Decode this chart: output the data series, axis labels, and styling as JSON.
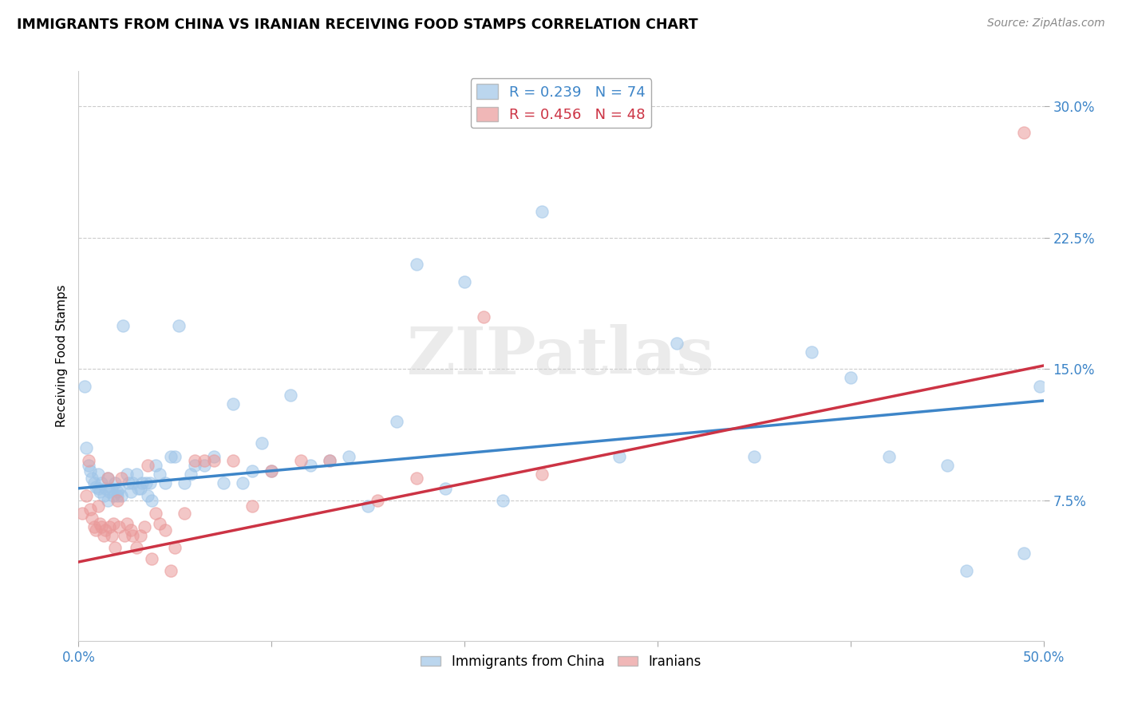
{
  "title": "IMMIGRANTS FROM CHINA VS IRANIAN RECEIVING FOOD STAMPS CORRELATION CHART",
  "source": "Source: ZipAtlas.com",
  "xlabel_china": "Immigrants from China",
  "xlabel_iranian": "Iranians",
  "ylabel": "Receiving Food Stamps",
  "xlim": [
    0.0,
    0.5
  ],
  "ylim": [
    -0.005,
    0.32
  ],
  "xticks": [
    0.0,
    0.1,
    0.2,
    0.3,
    0.4,
    0.5
  ],
  "xtick_labels": [
    "0.0%",
    "",
    "",
    "",
    "",
    "50.0%"
  ],
  "yticks_right": [
    0.075,
    0.15,
    0.225,
    0.3
  ],
  "ytick_labels": [
    "7.5%",
    "15.0%",
    "22.5%",
    "30.0%"
  ],
  "china_R": 0.239,
  "china_N": 74,
  "iran_R": 0.456,
  "iran_N": 48,
  "china_color": "#9fc5e8",
  "iran_color": "#ea9999",
  "china_line_color": "#3d85c8",
  "iran_line_color": "#cc3344",
  "china_line_start_y": 0.082,
  "china_line_end_y": 0.132,
  "iran_line_start_y": 0.04,
  "iran_line_end_y": 0.152,
  "watermark_text": "ZIPatlas",
  "china_scatter_x": [
    0.003,
    0.004,
    0.005,
    0.006,
    0.007,
    0.008,
    0.009,
    0.01,
    0.01,
    0.011,
    0.012,
    0.013,
    0.014,
    0.015,
    0.015,
    0.016,
    0.017,
    0.018,
    0.019,
    0.02,
    0.02,
    0.021,
    0.022,
    0.023,
    0.025,
    0.026,
    0.027,
    0.028,
    0.03,
    0.031,
    0.032,
    0.033,
    0.035,
    0.036,
    0.037,
    0.038,
    0.04,
    0.042,
    0.045,
    0.048,
    0.05,
    0.052,
    0.055,
    0.058,
    0.06,
    0.065,
    0.07,
    0.075,
    0.08,
    0.085,
    0.09,
    0.095,
    0.1,
    0.11,
    0.12,
    0.13,
    0.14,
    0.15,
    0.165,
    0.175,
    0.19,
    0.2,
    0.22,
    0.24,
    0.28,
    0.31,
    0.35,
    0.38,
    0.4,
    0.42,
    0.45,
    0.46,
    0.49,
    0.498
  ],
  "china_scatter_y": [
    0.14,
    0.105,
    0.095,
    0.092,
    0.088,
    0.085,
    0.083,
    0.09,
    0.082,
    0.08,
    0.085,
    0.078,
    0.082,
    0.088,
    0.075,
    0.08,
    0.082,
    0.078,
    0.085,
    0.08,
    0.078,
    0.082,
    0.078,
    0.175,
    0.09,
    0.085,
    0.08,
    0.085,
    0.09,
    0.082,
    0.082,
    0.085,
    0.085,
    0.078,
    0.085,
    0.075,
    0.095,
    0.09,
    0.085,
    0.1,
    0.1,
    0.175,
    0.085,
    0.09,
    0.095,
    0.095,
    0.1,
    0.085,
    0.13,
    0.085,
    0.092,
    0.108,
    0.092,
    0.135,
    0.095,
    0.098,
    0.1,
    0.072,
    0.12,
    0.21,
    0.082,
    0.2,
    0.075,
    0.24,
    0.1,
    0.165,
    0.1,
    0.16,
    0.145,
    0.1,
    0.095,
    0.035,
    0.045,
    0.14
  ],
  "iran_scatter_x": [
    0.002,
    0.004,
    0.005,
    0.006,
    0.007,
    0.008,
    0.009,
    0.01,
    0.011,
    0.012,
    0.013,
    0.014,
    0.015,
    0.016,
    0.017,
    0.018,
    0.019,
    0.02,
    0.021,
    0.022,
    0.024,
    0.025,
    0.027,
    0.028,
    0.03,
    0.032,
    0.034,
    0.036,
    0.038,
    0.04,
    0.042,
    0.045,
    0.048,
    0.05,
    0.055,
    0.06,
    0.065,
    0.07,
    0.08,
    0.09,
    0.1,
    0.115,
    0.13,
    0.155,
    0.175,
    0.21,
    0.24,
    0.49
  ],
  "iran_scatter_y": [
    0.068,
    0.078,
    0.098,
    0.07,
    0.065,
    0.06,
    0.058,
    0.072,
    0.062,
    0.06,
    0.055,
    0.058,
    0.088,
    0.06,
    0.055,
    0.062,
    0.048,
    0.075,
    0.06,
    0.088,
    0.055,
    0.062,
    0.058,
    0.055,
    0.048,
    0.055,
    0.06,
    0.095,
    0.042,
    0.068,
    0.062,
    0.058,
    0.035,
    0.048,
    0.068,
    0.098,
    0.098,
    0.098,
    0.098,
    0.072,
    0.092,
    0.098,
    0.098,
    0.075,
    0.088,
    0.18,
    0.09,
    0.285
  ]
}
